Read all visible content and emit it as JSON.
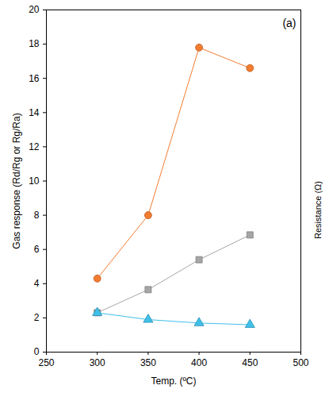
{
  "chart_data": {
    "type": "line",
    "x_label": "Temp. (ºC)",
    "y_label": "Gas response (Rd/Rg or Rg/Ra)",
    "annotations": [
      "(a)",
      "Resistance (Ω)"
    ],
    "x": [
      300,
      350,
      400,
      450
    ],
    "series": [
      {
        "color": "#f47c30",
        "marker": "circle",
        "values": [
          4.3,
          8.0,
          17.8,
          16.6
        ]
      },
      {
        "color": "#a6a6a6",
        "marker": "square",
        "values": [
          2.3,
          3.65,
          5.4,
          6.85
        ]
      },
      {
        "color": "#3fc0ea",
        "marker": "triangle",
        "values": [
          2.3,
          1.9,
          1.7,
          1.6
        ]
      }
    ],
    "xlim": [
      250,
      500
    ],
    "xticks": [
      250,
      300,
      350,
      400,
      450,
      500
    ],
    "ylim": [
      0,
      20
    ],
    "yticks": [
      0,
      2,
      4,
      6,
      8,
      10,
      12,
      14,
      16,
      18,
      20
    ],
    "grid": false
  }
}
